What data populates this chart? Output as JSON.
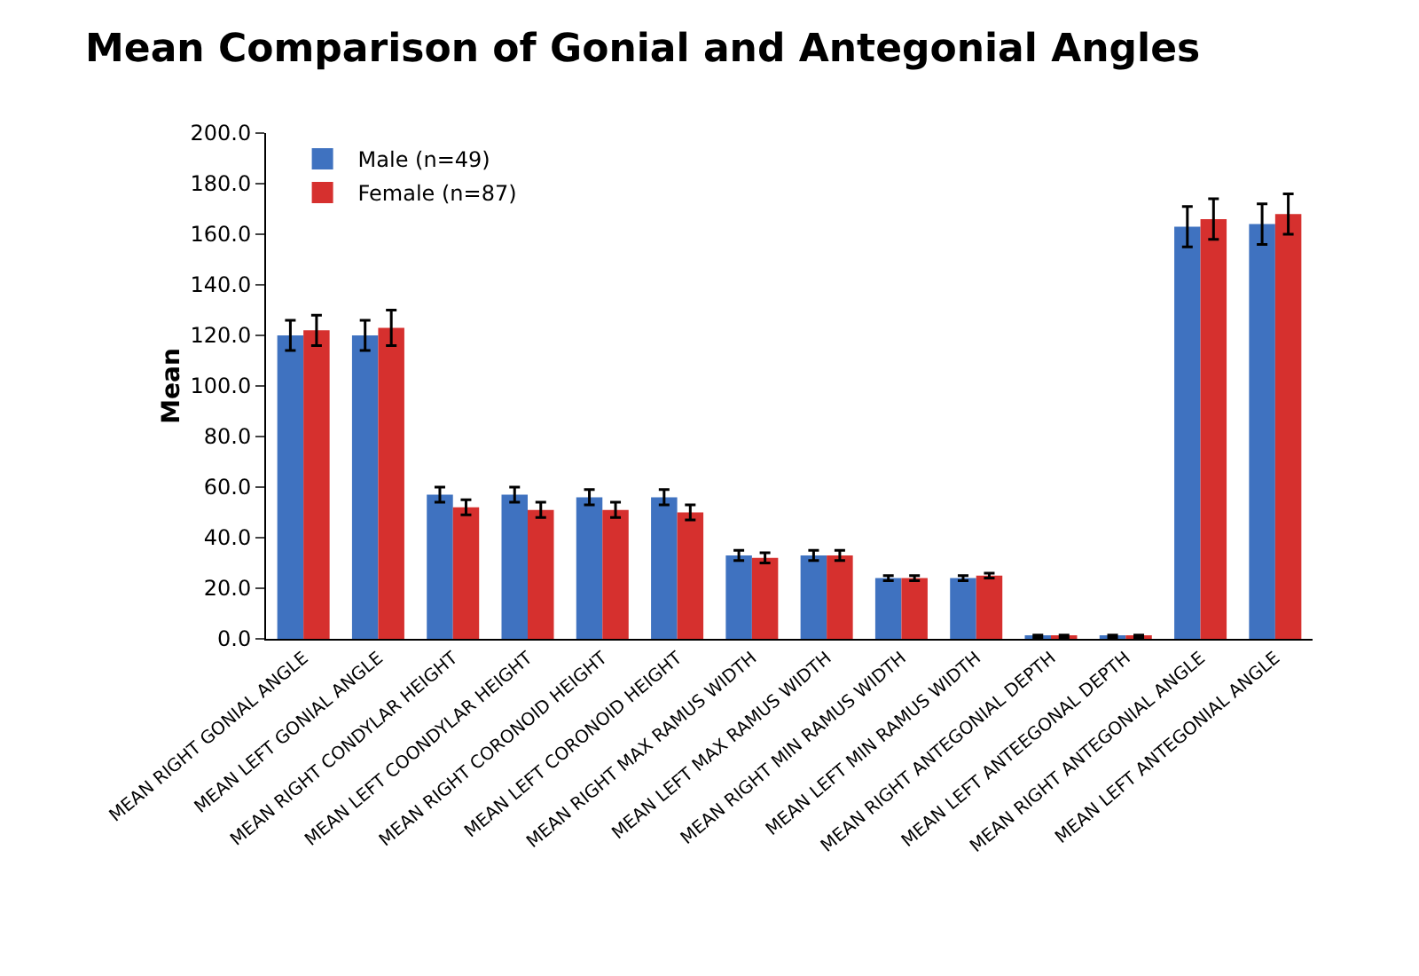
{
  "chart_data": {
    "type": "bar",
    "title": "Mean Comparison of Gonial and Antegonial Angles",
    "ylabel": "Mean",
    "categories": [
      "MEAN RIGHT GONIAL ANGLE",
      "MEAN LEFT GONIAL ANGLE",
      "MEAN RIGHT CONDYLAR HEIGHT",
      "MEAN LEFT COONDYLAR HEIGHT",
      "MEAN RIGHT CORONOID HEIGHT",
      "MEAN LEFT CORONOID HEIGHT",
      "MEAN RIGHT MAX RAMUS WIDTH",
      "MEAN LEFT MAX RAMUS WIDTH",
      "MEAN RIGHT MIN RAMUS WIDTH",
      "MEAN LEFT MIN RAMUS WIDTH",
      "MEAN RIGHT ANTEGONIAL DEPTH",
      "MEAN LEFT ANTEEGONAL DEPTH",
      "MEAN RIGHT ANTEGONIAL ANGLE",
      "MEAN LEFT ANTEGONIAL ANGLE"
    ],
    "series": [
      {
        "name": "Male (n=49)",
        "color": "#3f72c0",
        "values": [
          120,
          120,
          57,
          57,
          56,
          56,
          33,
          33,
          24,
          24,
          1,
          1,
          163,
          164
        ],
        "errors": [
          6,
          6,
          3,
          3,
          3,
          3,
          2,
          2,
          1,
          1,
          0.5,
          0.5,
          8,
          8
        ]
      },
      {
        "name": "Female (n=87)",
        "color": "#d6302e",
        "values": [
          122,
          123,
          52,
          51,
          51,
          50,
          32,
          33,
          24,
          25,
          1,
          1,
          166,
          168
        ],
        "errors": [
          6,
          7,
          3,
          3,
          3,
          3,
          2,
          2,
          1,
          1,
          0.5,
          0.5,
          8,
          8
        ]
      }
    ],
    "ylim": [
      0,
      200
    ],
    "yticks": [
      {
        "value": 0,
        "label": "0.0"
      },
      {
        "value": 20,
        "label": "20.0"
      },
      {
        "value": 40,
        "label": "40.0"
      },
      {
        "value": 60,
        "label": "60.0"
      },
      {
        "value": 80,
        "label": "80.0"
      },
      {
        "value": 100,
        "label": "100.0"
      },
      {
        "value": 120,
        "label": "120.0"
      },
      {
        "value": 140,
        "label": "140.0"
      },
      {
        "value": 160,
        "label": "160.0"
      },
      {
        "value": 180,
        "label": "180.0"
      },
      {
        "value": 200,
        "label": "200.0"
      }
    ],
    "grid": false,
    "legend": "top left"
  }
}
